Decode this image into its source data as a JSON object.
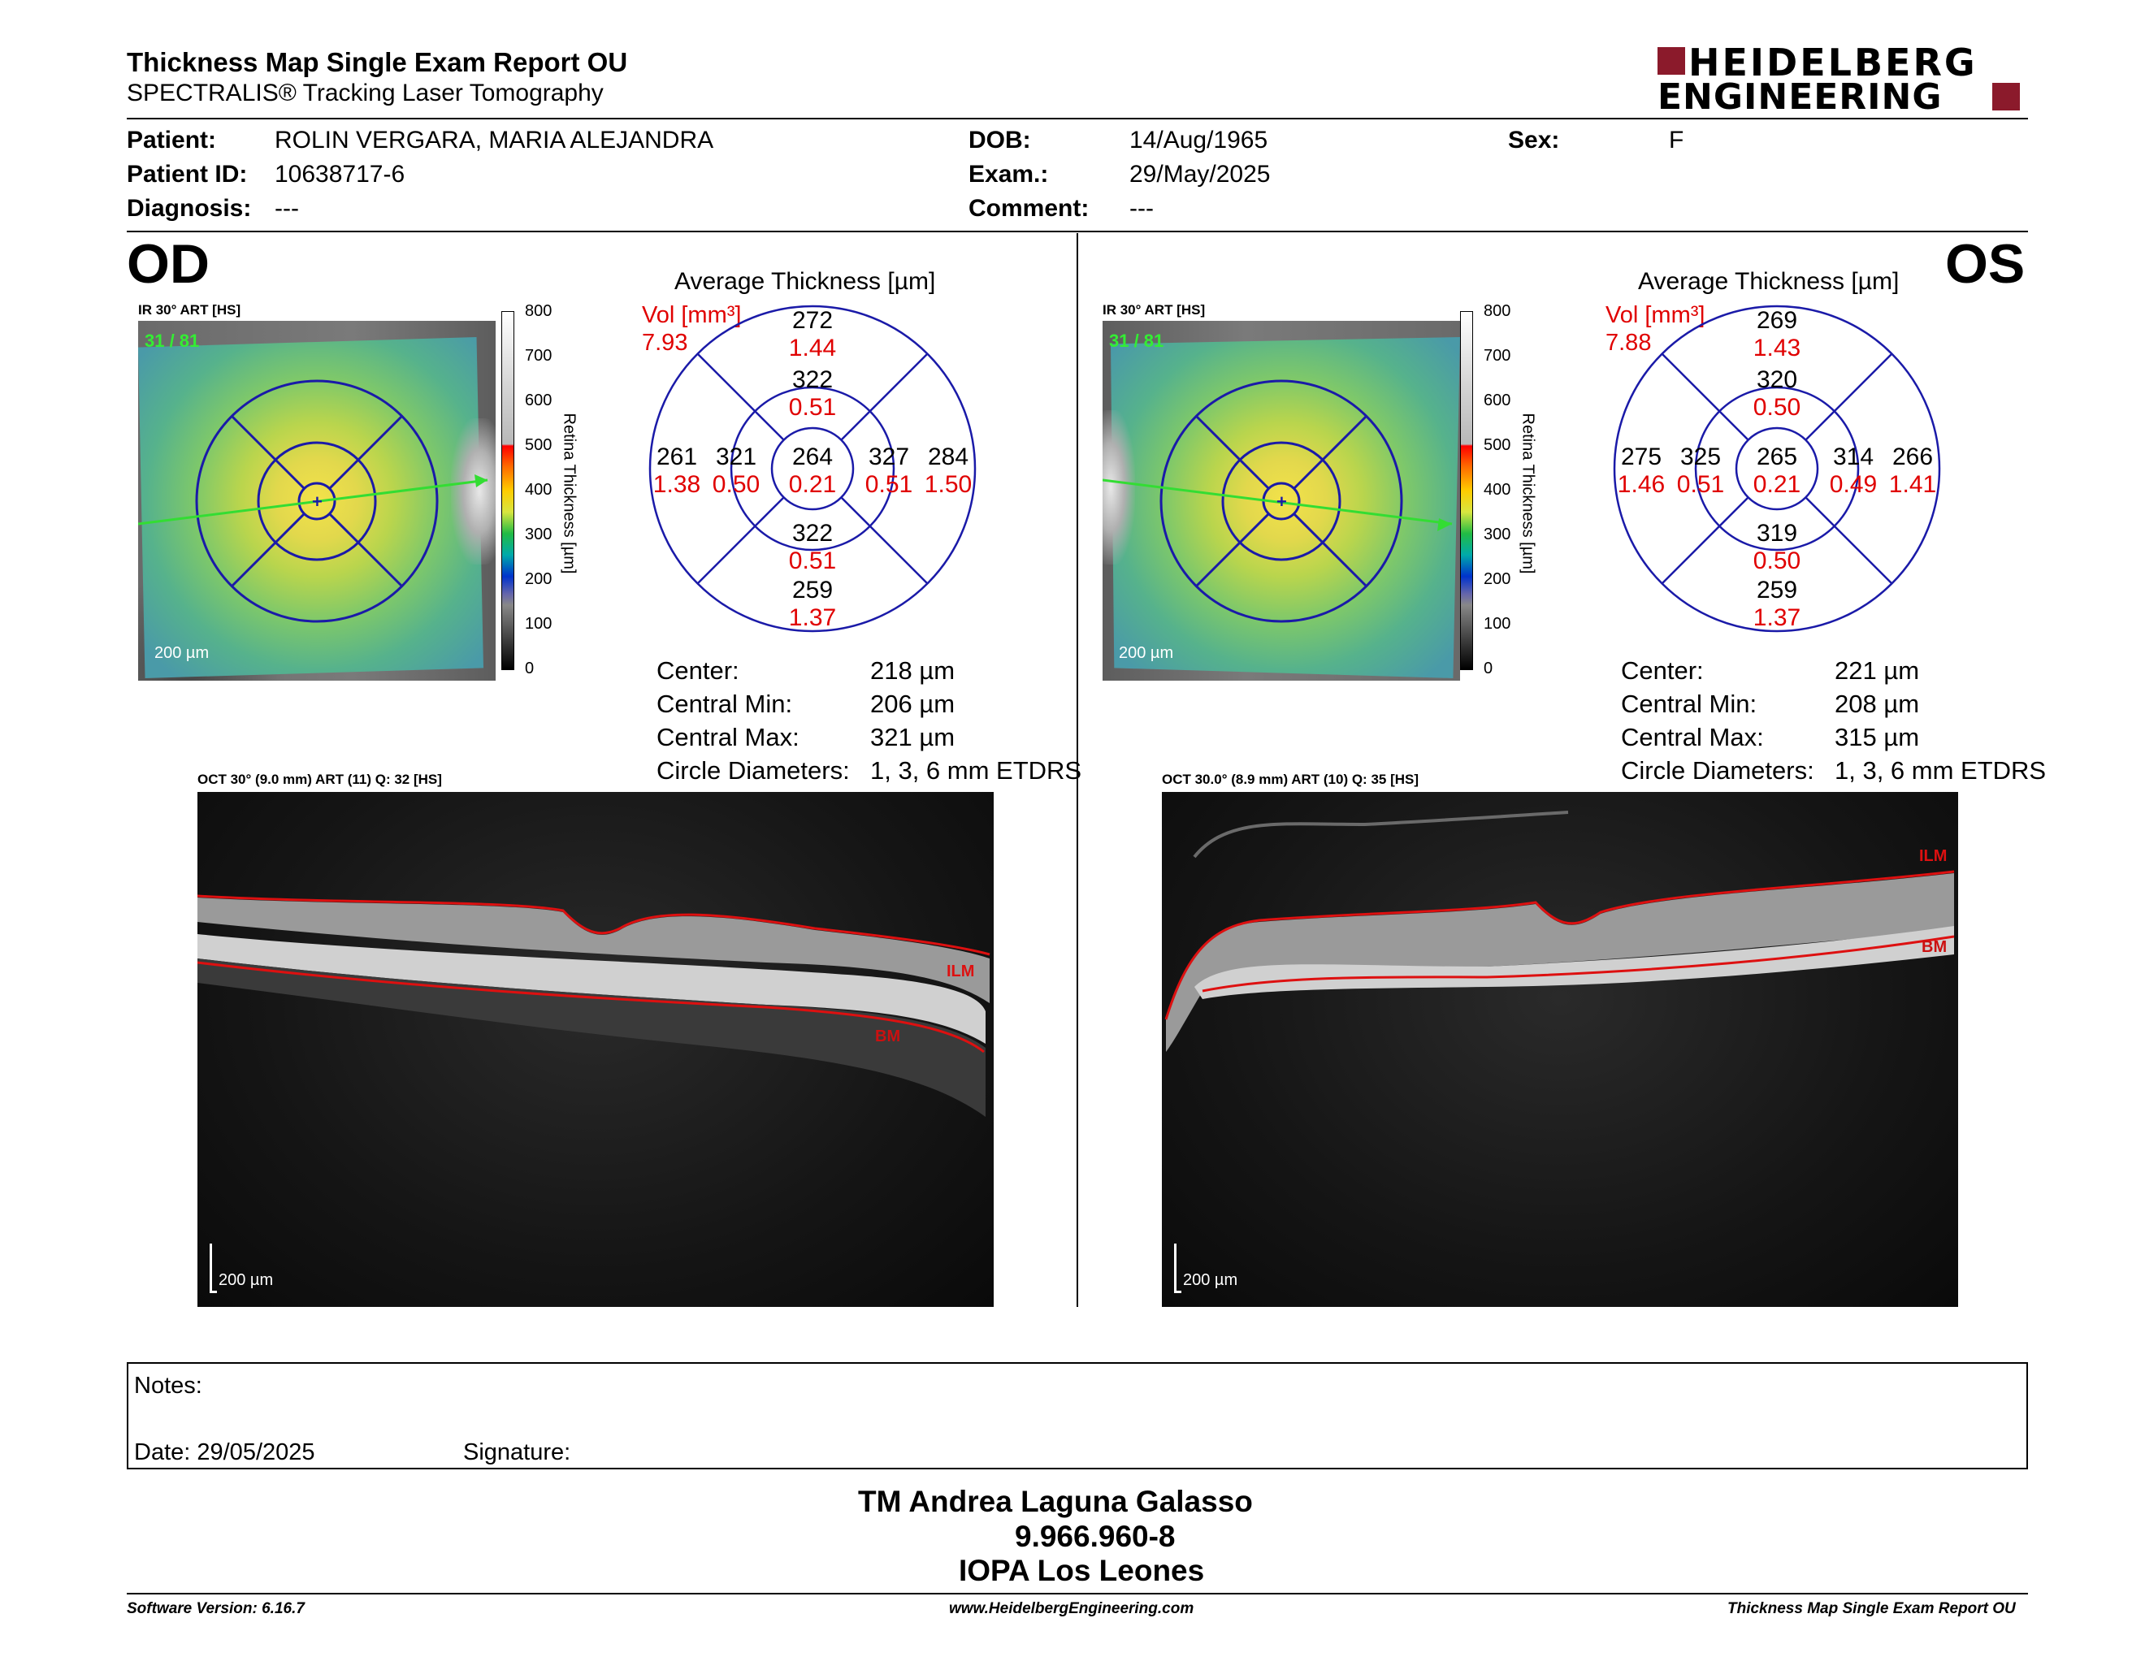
{
  "header": {
    "title": "Thickness Map Single Exam Report OU",
    "subtitle": "SPECTRALIS® Tracking Laser Tomography",
    "logo_line1": "HEIDELBERG",
    "logo_line2": "ENGINEERING",
    "brand_color": "#8b1a2b"
  },
  "patient": {
    "patient_label": "Patient:",
    "patient_value": "ROLIN VERGARA, MARIA ALEJANDRA",
    "id_label": "Patient ID:",
    "id_value": "10638717-6",
    "diagnosis_label": "Diagnosis:",
    "diagnosis_value": "---",
    "dob_label": "DOB:",
    "dob_value": "14/Aug/1965",
    "exam_label": "Exam.:",
    "exam_value": "29/May/2025",
    "comment_label": "Comment:",
    "comment_value": "---",
    "sex_label": "Sex:",
    "sex_value": "F"
  },
  "od": {
    "eye": "OD",
    "ir_label": "IR 30° ART [HS]",
    "frame_counter": "31 / 81",
    "ir_scale": "200 µm",
    "oct_label": "OCT 30° (9.0 mm) ART (11) Q: 32 [HS]",
    "oct_scale": "200 µm",
    "ilm": "ILM",
    "bm": "BM",
    "avg_title": "Average Thickness [µm]",
    "vol_label": "Vol [mm³]",
    "vol_value": "7.93",
    "grid": {
      "center": {
        "t": "264",
        "v": "0.21"
      },
      "inner_top": {
        "t": "322",
        "v": "0.51"
      },
      "inner_bottom": {
        "t": "322",
        "v": "0.51"
      },
      "inner_left": {
        "t": "321",
        "v": "0.50"
      },
      "inner_right": {
        "t": "327",
        "v": "0.51"
      },
      "outer_top": {
        "t": "272",
        "v": "1.44"
      },
      "outer_bottom": {
        "t": "259",
        "v": "1.37"
      },
      "outer_left": {
        "t": "261",
        "v": "1.38"
      },
      "outer_right": {
        "t": "284",
        "v": "1.50"
      }
    },
    "stats": {
      "center_label": "Center:",
      "center_value": "218 µm",
      "min_label": "Central Min:",
      "min_value": "206 µm",
      "max_label": "Central Max:",
      "max_value": "321 µm",
      "circ_label": "Circle Diameters:",
      "circ_value": "1, 3, 6 mm ETDRS"
    }
  },
  "os": {
    "eye": "OS",
    "ir_label": "IR 30° ART [HS]",
    "frame_counter": "31 / 81",
    "ir_scale": "200 µm",
    "oct_label": "OCT 30.0° (8.9 mm) ART (10) Q: 35 [HS]",
    "oct_scale": "200 µm",
    "ilm": "ILM",
    "bm": "BM",
    "avg_title": "Average Thickness [µm]",
    "vol_label": "Vol [mm³]",
    "vol_value": "7.88",
    "grid": {
      "center": {
        "t": "265",
        "v": "0.21"
      },
      "inner_top": {
        "t": "320",
        "v": "0.50"
      },
      "inner_bottom": {
        "t": "319",
        "v": "0.50"
      },
      "inner_left": {
        "t": "325",
        "v": "0.51"
      },
      "inner_right": {
        "t": "314",
        "v": "0.49"
      },
      "outer_top": {
        "t": "269",
        "v": "1.43"
      },
      "outer_bottom": {
        "t": "259",
        "v": "1.37"
      },
      "outer_left": {
        "t": "275",
        "v": "1.46"
      },
      "outer_right": {
        "t": "266",
        "v": "1.41"
      }
    },
    "stats": {
      "center_label": "Center:",
      "center_value": "221 µm",
      "min_label": "Central Min:",
      "min_value": "208 µm",
      "max_label": "Central Max:",
      "max_value": "315 µm",
      "circ_label": "Circle Diameters:",
      "circ_value": "1, 3, 6 mm ETDRS"
    }
  },
  "colorbar": {
    "title": "Retina Thickness [µm]",
    "ticks": [
      "800",
      "700",
      "600",
      "500",
      "400",
      "300",
      "200",
      "100",
      "0"
    ]
  },
  "notes": {
    "notes_label": "Notes:",
    "date_label": "Date: 29/05/2025",
    "signature_label": "Signature:"
  },
  "signature_block": {
    "name": "TM Andrea Laguna Galasso",
    "id": "9.966.960-8",
    "org": "IOPA Los Leones"
  },
  "footer": {
    "software": "Software Version: 6.16.7",
    "website": "www.HeidelbergEngineering.com",
    "report": "Thickness Map Single Exam Report OU"
  },
  "colors": {
    "grid_line": "#1a1aa8",
    "volume_red": "#e00000",
    "segment_red": "#cc1010",
    "scan_line_green": "#33dd33"
  }
}
